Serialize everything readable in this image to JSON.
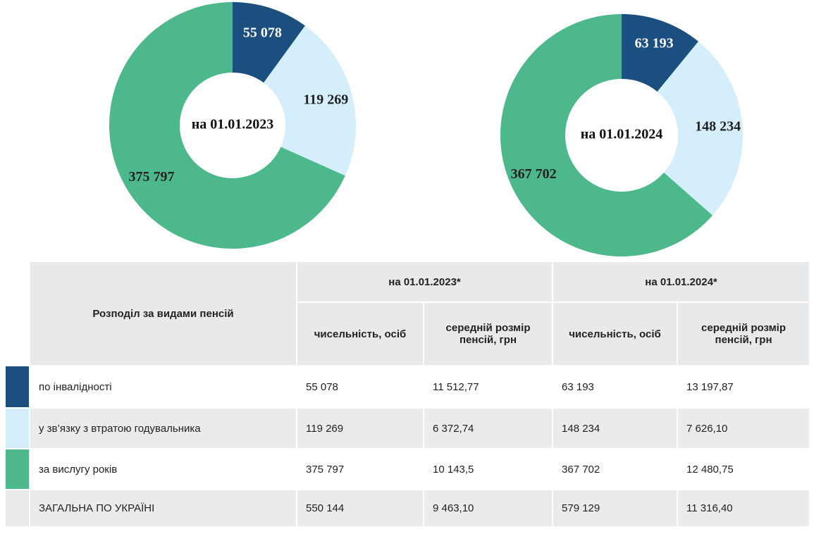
{
  "chart_data": [
    {
      "type": "donut",
      "title": "на 01.01.2023",
      "values": [
        55078,
        119269,
        375797
      ],
      "value_labels": [
        "55 078",
        "119 269",
        "375 797"
      ],
      "colors": [
        "#1b4f80",
        "#d4eefb",
        "#4cb88c"
      ]
    },
    {
      "type": "donut",
      "title": "на 01.01.2024",
      "values": [
        63193,
        148234,
        367702
      ],
      "value_labels": [
        "63 193",
        "148 234",
        "367 702"
      ],
      "colors": [
        "#1b4f80",
        "#d4eefb",
        "#4cb88c"
      ]
    }
  ],
  "table": {
    "header": "Розподіл за видами пенсій",
    "periods": [
      "на 01.01.2023*",
      "на 01.01.2024*"
    ],
    "columns": [
      "чисельність, осіб",
      "середній розмір пенсій, грн",
      "чисельність, осіб",
      "середній розмір пенсій, грн"
    ],
    "rows": [
      [
        "по інвалідності",
        "55 078",
        "11 512,77",
        "63 193",
        "13 197,87"
      ],
      [
        "у зв’язку з втратою годувальника",
        "119 269",
        "6 372,74",
        "148 234",
        "7 626,10"
      ],
      [
        "за вислугу років",
        "375 797",
        "10 143,5",
        "367 702",
        "12 480,75"
      ],
      [
        "ЗАГАЛЬНА ПО УКРАЇНІ",
        "550 144",
        "9 463,10",
        "579 129",
        "11 316,40"
      ]
    ],
    "row_colors": [
      "#1b4f80",
      "#d4eefb",
      "#4cb88c",
      "#e9eaec"
    ]
  }
}
